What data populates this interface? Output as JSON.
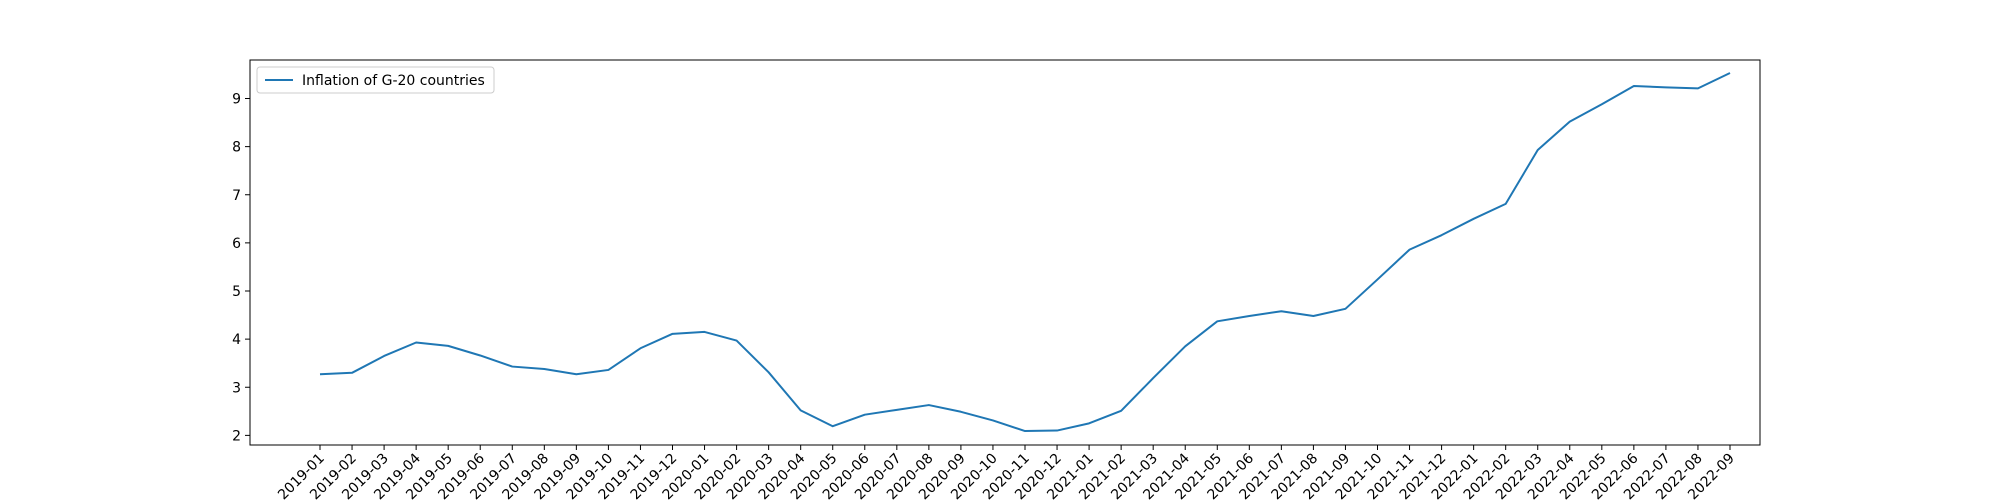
{
  "chart_data": {
    "type": "line",
    "title": "",
    "xlabel": "",
    "ylabel": "",
    "ylim": [
      1.8,
      9.8
    ],
    "yticks": [
      2,
      3,
      4,
      5,
      6,
      7,
      8,
      9
    ],
    "grid": false,
    "legend_position": "top-left",
    "categories": [
      "2019-01",
      "2019-02",
      "2019-03",
      "2019-04",
      "2019-05",
      "2019-06",
      "2019-07",
      "2019-08",
      "2019-09",
      "2019-10",
      "2019-11",
      "2019-12",
      "2020-01",
      "2020-02",
      "2020-03",
      "2020-04",
      "2020-05",
      "2020-06",
      "2020-07",
      "2020-08",
      "2020-09",
      "2020-10",
      "2020-11",
      "2020-12",
      "2021-01",
      "2021-02",
      "2021-03",
      "2021-04",
      "2021-05",
      "2021-06",
      "2021-07",
      "2021-08",
      "2021-09",
      "2021-10",
      "2021-11",
      "2021-12",
      "2022-01",
      "2022-02",
      "2022-03",
      "2022-04",
      "2022-05",
      "2022-06",
      "2022-07",
      "2022-08",
      "2022-09"
    ],
    "series": [
      {
        "name": "Inflation of G-20 countries",
        "color": "#1f77b4",
        "values": [
          3.27,
          3.3,
          3.65,
          3.93,
          3.86,
          3.66,
          3.43,
          3.38,
          3.27,
          3.36,
          3.81,
          4.11,
          4.15,
          3.97,
          3.31,
          2.52,
          2.19,
          2.43,
          2.53,
          2.63,
          2.49,
          2.31,
          2.09,
          2.1,
          2.25,
          2.51,
          3.19,
          3.85,
          4.37,
          4.48,
          4.58,
          4.48,
          4.63,
          5.24,
          5.86,
          6.16,
          6.5,
          6.81,
          7.93,
          8.52,
          8.88,
          9.26,
          9.23,
          9.21,
          9.53
        ]
      }
    ]
  }
}
